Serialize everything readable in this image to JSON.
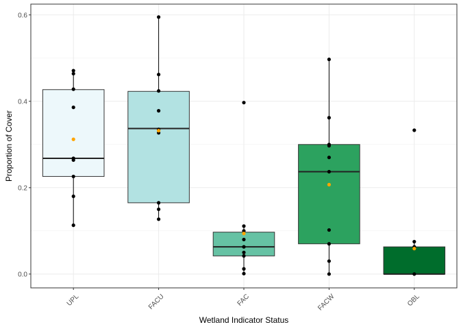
{
  "chart_data": {
    "type": "box",
    "title": "",
    "xlabel": "Wetland Indicator Status",
    "ylabel": "Proportion of Cover",
    "ylim": [
      -0.032,
      0.625
    ],
    "yticks": [
      0.0,
      0.2,
      0.4,
      0.6
    ],
    "ytick_labels": [
      "0.0",
      "0.2",
      "0.4",
      "0.6"
    ],
    "grid": true,
    "legend": "none",
    "mean_point_color": "#FFA500",
    "point_color": "#000000",
    "categories": [
      "UPL",
      "FACU",
      "FAC",
      "FACW",
      "OBL"
    ],
    "boxes": [
      {
        "category": "UPL",
        "fill": "#EDF8FB",
        "whisker_low": 0.113,
        "q1": 0.226,
        "median": 0.268,
        "q3": 0.427,
        "whisker_high": 0.471,
        "mean": 0.312,
        "points": [
          0.471,
          0.464,
          0.428,
          0.386,
          0.268,
          0.264,
          0.226,
          0.18,
          0.113
        ]
      },
      {
        "category": "FACU",
        "fill": "#B2E2E2",
        "whisker_low": 0.127,
        "q1": 0.165,
        "median": 0.337,
        "q3": 0.423,
        "whisker_high": 0.595,
        "mean": 0.332,
        "points": [
          0.595,
          0.462,
          0.424,
          0.378,
          0.335,
          0.327,
          0.165,
          0.15,
          0.127
        ]
      },
      {
        "category": "FAC",
        "fill": "#66C2A4",
        "whisker_low": 0.0,
        "q1": 0.042,
        "median": 0.063,
        "q3": 0.097,
        "whisker_high": 0.111,
        "mean": 0.094,
        "points": [
          0.397,
          0.111,
          0.1,
          0.08,
          0.063,
          0.05,
          0.042,
          0.012,
          0.001
        ]
      },
      {
        "category": "FACW",
        "fill": "#2CA25F",
        "whisker_low": 0.0,
        "q1": 0.07,
        "median": 0.237,
        "q3": 0.3,
        "whisker_high": 0.497,
        "mean": 0.207,
        "points": [
          0.497,
          0.362,
          0.3,
          0.297,
          0.27,
          0.237,
          0.102,
          0.07,
          0.03,
          0.0
        ]
      },
      {
        "category": "OBL",
        "fill": "#006D2C",
        "whisker_low": 0.0,
        "q1": 0.0,
        "median": 0.0,
        "q3": 0.063,
        "whisker_high": 0.075,
        "mean": 0.059,
        "points": [
          0.333,
          0.075,
          0.063,
          0.0
        ]
      }
    ]
  }
}
